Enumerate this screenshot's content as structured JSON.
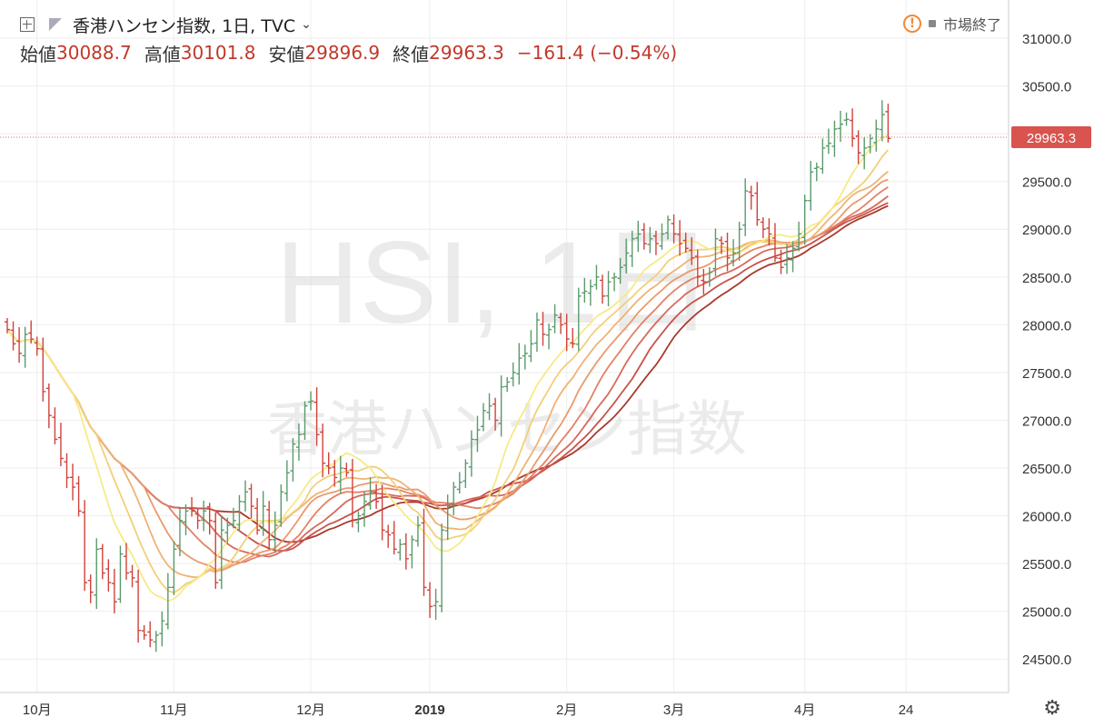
{
  "header": {
    "symbol": "香港ハンセン指数, 1日, TVC",
    "open_label": "始値",
    "open": "30088.7",
    "high_label": "高値",
    "high": "30101.8",
    "low_label": "安値",
    "low": "29896.9",
    "close_label": "終値",
    "close": "29963.3",
    "change": "−161.4 (−0.54%)",
    "market_status": "市場終了"
  },
  "watermark": {
    "symbol": "HSI, 1日",
    "name": "香港ハンセン指数"
  },
  "colors": {
    "up": "#5a9a6c",
    "down": "#d0423a",
    "price_line": "#e06a60",
    "price_tag": "#d9534f"
  },
  "chart_data": {
    "type": "ohlc",
    "title": "香港ハンセン指数, 1日, TVC",
    "y_ticks": [
      24500,
      25000,
      25500,
      26000,
      26500,
      27000,
      27500,
      28000,
      28500,
      29000,
      29500,
      30000,
      30500,
      31000
    ],
    "y_tick_labels": [
      "24500.0",
      "25000.0",
      "25500.0",
      "26000.0",
      "26500.0",
      "27000.0",
      "27500.0",
      "28000.0",
      "28500.0",
      "29000.0",
      "29500.0",
      "30000.0",
      "30500.0",
      "31000.0"
    ],
    "ylim": [
      24150,
      31400
    ],
    "x_ticks": [
      {
        "label": "10月",
        "idx": 5
      },
      {
        "label": "11月",
        "idx": 28
      },
      {
        "label": "12月",
        "idx": 51
      },
      {
        "label": "2019",
        "idx": 71,
        "bold": true
      },
      {
        "label": "2月",
        "idx": 94
      },
      {
        "label": "3月",
        "idx": 112
      },
      {
        "label": "4月",
        "idx": 134
      },
      {
        "label": "24",
        "idx": 151
      }
    ],
    "last_price": 29963.3,
    "last_price_label": "29963.3",
    "closes": [
      27950,
      27800,
      27700,
      27900,
      27850,
      27750,
      27300,
      27050,
      26800,
      26600,
      26400,
      26300,
      26050,
      25300,
      25200,
      25650,
      25400,
      25300,
      25100,
      25600,
      25400,
      25350,
      24800,
      24750,
      24700,
      24750,
      24900,
      25250,
      25650,
      25950,
      26050,
      26050,
      25950,
      26050,
      25950,
      25300,
      25850,
      25900,
      25950,
      26150,
      26250,
      26100,
      25850,
      26100,
      25750,
      25900,
      26250,
      26450,
      26750,
      26850,
      27150,
      27200,
      26850,
      26550,
      26500,
      26400,
      26500,
      26450,
      25950,
      26000,
      26150,
      26250,
      26150,
      25850,
      25800,
      25650,
      25700,
      25550,
      25750,
      25900,
      25250,
      25050,
      25100,
      25850,
      26100,
      26300,
      26350,
      26550,
      26800,
      26900,
      27100,
      27150,
      27000,
      27350,
      27400,
      27500,
      27650,
      27700,
      27800,
      28050,
      27900,
      27950,
      28100,
      28000,
      27850,
      27800,
      28300,
      28350,
      28400,
      28500,
      28300,
      28450,
      28500,
      28600,
      28750,
      28900,
      28950,
      28850,
      28900,
      28850,
      28950,
      29100,
      28950,
      28850,
      28800,
      28700,
      28500,
      28450,
      28550,
      28900,
      28850,
      28700,
      28750,
      29000,
      29400,
      29350,
      29100,
      29000,
      28950,
      28700,
      28600,
      28700,
      28800,
      28950,
      29300,
      29600,
      29650,
      29850,
      29900,
      30050,
      30100,
      30150,
      29950,
      29800,
      29850,
      29950,
      30050,
      30200,
      29950
    ],
    "mas": [
      {
        "period": 12,
        "color": "#f7ea86"
      },
      {
        "period": 16,
        "color": "#f3cf7a"
      },
      {
        "period": 20,
        "color": "#efb373"
      },
      {
        "period": 24,
        "color": "#ea9a6c"
      },
      {
        "period": 28,
        "color": "#e38165"
      },
      {
        "period": 32,
        "color": "#d8695b"
      },
      {
        "period": 36,
        "color": "#c95249"
      },
      {
        "period": 40,
        "color": "#a83a2c"
      }
    ]
  }
}
